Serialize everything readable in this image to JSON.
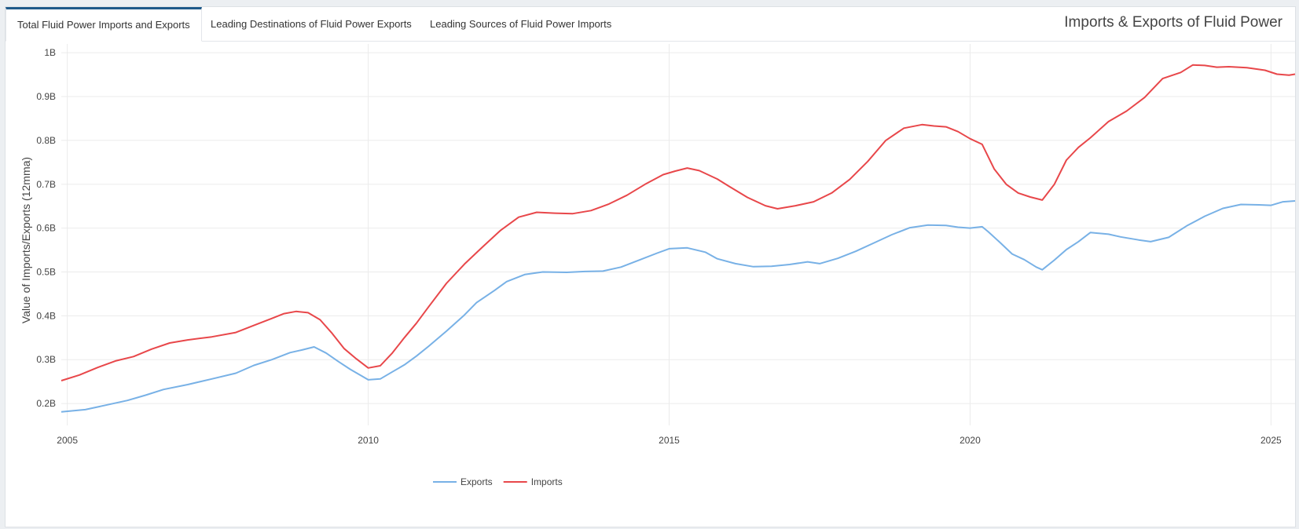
{
  "tabs": [
    {
      "label": "Total Fluid Power Imports and Exports"
    },
    {
      "label": "Leading Destinations of Fluid Power Exports"
    },
    {
      "label": "Leading Sources of Fluid Power Imports"
    }
  ],
  "page_title": "Imports & Exports of Fluid Power",
  "colors": {
    "exports": "#78b1e6",
    "imports": "#e8474a",
    "accent": "#1f5a8a"
  },
  "chart_data": {
    "type": "line",
    "title": "",
    "xlabel": "",
    "ylabel": "Value of Imports/Exports (12mma)",
    "xlim": [
      2004.9,
      2025.4
    ],
    "ylim": [
      0.15,
      1.02
    ],
    "x_ticks": [
      2005,
      2010,
      2015,
      2020,
      2025
    ],
    "x_tick_labels": [
      "2005",
      "2010",
      "2015",
      "2020",
      "2025"
    ],
    "y_ticks": [
      0.2,
      0.3,
      0.4,
      0.5,
      0.6,
      0.7,
      0.8,
      0.9,
      1.0
    ],
    "y_tick_labels": [
      "0.2B",
      "0.3B",
      "0.4B",
      "0.5B",
      "0.6B",
      "0.7B",
      "0.8B",
      "0.9B",
      "1B"
    ],
    "grid": true,
    "legend_position": "bottom-center",
    "series": [
      {
        "name": "Exports",
        "color": "#78b1e6",
        "points": [
          [
            2004.9,
            0.181
          ],
          [
            2005.3,
            0.186
          ],
          [
            2005.7,
            0.198
          ],
          [
            2006.0,
            0.207
          ],
          [
            2006.3,
            0.219
          ],
          [
            2006.6,
            0.232
          ],
          [
            2007.0,
            0.243
          ],
          [
            2007.4,
            0.256
          ],
          [
            2007.8,
            0.269
          ],
          [
            2008.1,
            0.287
          ],
          [
            2008.4,
            0.3
          ],
          [
            2008.7,
            0.316
          ],
          [
            2008.9,
            0.322
          ],
          [
            2009.1,
            0.329
          ],
          [
            2009.3,
            0.315
          ],
          [
            2009.5,
            0.296
          ],
          [
            2009.7,
            0.278
          ],
          [
            2009.9,
            0.262
          ],
          [
            2010.0,
            0.254
          ],
          [
            2010.2,
            0.256
          ],
          [
            2010.4,
            0.272
          ],
          [
            2010.6,
            0.288
          ],
          [
            2010.8,
            0.308
          ],
          [
            2011.0,
            0.33
          ],
          [
            2011.3,
            0.365
          ],
          [
            2011.6,
            0.402
          ],
          [
            2011.8,
            0.43
          ],
          [
            2012.1,
            0.458
          ],
          [
            2012.3,
            0.478
          ],
          [
            2012.6,
            0.494
          ],
          [
            2012.9,
            0.5
          ],
          [
            2013.3,
            0.499
          ],
          [
            2013.6,
            0.501
          ],
          [
            2013.9,
            0.502
          ],
          [
            2014.2,
            0.511
          ],
          [
            2014.5,
            0.527
          ],
          [
            2014.8,
            0.543
          ],
          [
            2015.0,
            0.553
          ],
          [
            2015.3,
            0.555
          ],
          [
            2015.6,
            0.545
          ],
          [
            2015.8,
            0.53
          ],
          [
            2016.1,
            0.519
          ],
          [
            2016.4,
            0.512
          ],
          [
            2016.7,
            0.513
          ],
          [
            2017.0,
            0.517
          ],
          [
            2017.3,
            0.523
          ],
          [
            2017.5,
            0.519
          ],
          [
            2017.8,
            0.531
          ],
          [
            2018.1,
            0.547
          ],
          [
            2018.4,
            0.566
          ],
          [
            2018.7,
            0.585
          ],
          [
            2019.0,
            0.601
          ],
          [
            2019.3,
            0.607
          ],
          [
            2019.6,
            0.606
          ],
          [
            2019.8,
            0.602
          ],
          [
            2020.0,
            0.6
          ],
          [
            2020.2,
            0.603
          ],
          [
            2020.3,
            0.592
          ],
          [
            2020.5,
            0.567
          ],
          [
            2020.7,
            0.541
          ],
          [
            2020.9,
            0.528
          ],
          [
            2021.1,
            0.511
          ],
          [
            2021.2,
            0.505
          ],
          [
            2021.4,
            0.527
          ],
          [
            2021.6,
            0.551
          ],
          [
            2021.8,
            0.569
          ],
          [
            2022.0,
            0.59
          ],
          [
            2022.3,
            0.586
          ],
          [
            2022.5,
            0.58
          ],
          [
            2022.8,
            0.573
          ],
          [
            2023.0,
            0.569
          ],
          [
            2023.3,
            0.579
          ],
          [
            2023.6,
            0.605
          ],
          [
            2023.9,
            0.627
          ],
          [
            2024.2,
            0.645
          ],
          [
            2024.5,
            0.654
          ],
          [
            2024.8,
            0.653
          ],
          [
            2025.0,
            0.652
          ],
          [
            2025.2,
            0.66
          ],
          [
            2025.4,
            0.662
          ]
        ]
      },
      {
        "name": "Imports",
        "color": "#e8474a",
        "points": [
          [
            2004.9,
            0.252
          ],
          [
            2005.2,
            0.265
          ],
          [
            2005.5,
            0.282
          ],
          [
            2005.8,
            0.297
          ],
          [
            2006.1,
            0.307
          ],
          [
            2006.4,
            0.324
          ],
          [
            2006.7,
            0.338
          ],
          [
            2007.0,
            0.345
          ],
          [
            2007.4,
            0.352
          ],
          [
            2007.8,
            0.362
          ],
          [
            2008.1,
            0.378
          ],
          [
            2008.4,
            0.394
          ],
          [
            2008.6,
            0.405
          ],
          [
            2008.8,
            0.41
          ],
          [
            2009.0,
            0.407
          ],
          [
            2009.2,
            0.391
          ],
          [
            2009.4,
            0.36
          ],
          [
            2009.6,
            0.325
          ],
          [
            2009.8,
            0.302
          ],
          [
            2010.0,
            0.281
          ],
          [
            2010.2,
            0.286
          ],
          [
            2010.4,
            0.315
          ],
          [
            2010.6,
            0.35
          ],
          [
            2010.8,
            0.383
          ],
          [
            2011.0,
            0.42
          ],
          [
            2011.3,
            0.474
          ],
          [
            2011.6,
            0.518
          ],
          [
            2011.9,
            0.557
          ],
          [
            2012.2,
            0.595
          ],
          [
            2012.5,
            0.625
          ],
          [
            2012.8,
            0.636
          ],
          [
            2013.1,
            0.634
          ],
          [
            2013.4,
            0.633
          ],
          [
            2013.7,
            0.64
          ],
          [
            2014.0,
            0.655
          ],
          [
            2014.3,
            0.675
          ],
          [
            2014.6,
            0.7
          ],
          [
            2014.9,
            0.722
          ],
          [
            2015.1,
            0.73
          ],
          [
            2015.3,
            0.737
          ],
          [
            2015.5,
            0.731
          ],
          [
            2015.8,
            0.712
          ],
          [
            2016.0,
            0.695
          ],
          [
            2016.3,
            0.67
          ],
          [
            2016.6,
            0.651
          ],
          [
            2016.8,
            0.644
          ],
          [
            2017.1,
            0.651
          ],
          [
            2017.4,
            0.66
          ],
          [
            2017.7,
            0.68
          ],
          [
            2018.0,
            0.711
          ],
          [
            2018.3,
            0.752
          ],
          [
            2018.6,
            0.8
          ],
          [
            2018.9,
            0.828
          ],
          [
            2019.2,
            0.836
          ],
          [
            2019.4,
            0.833
          ],
          [
            2019.6,
            0.831
          ],
          [
            2019.8,
            0.82
          ],
          [
            2020.0,
            0.804
          ],
          [
            2020.2,
            0.791
          ],
          [
            2020.4,
            0.735
          ],
          [
            2020.6,
            0.7
          ],
          [
            2020.8,
            0.68
          ],
          [
            2021.0,
            0.671
          ],
          [
            2021.2,
            0.664
          ],
          [
            2021.4,
            0.7
          ],
          [
            2021.6,
            0.755
          ],
          [
            2021.8,
            0.784
          ],
          [
            2022.0,
            0.806
          ],
          [
            2022.3,
            0.843
          ],
          [
            2022.6,
            0.867
          ],
          [
            2022.9,
            0.898
          ],
          [
            2023.2,
            0.941
          ],
          [
            2023.5,
            0.955
          ],
          [
            2023.7,
            0.972
          ],
          [
            2023.9,
            0.971
          ],
          [
            2024.1,
            0.967
          ],
          [
            2024.3,
            0.968
          ],
          [
            2024.6,
            0.966
          ],
          [
            2024.9,
            0.96
          ],
          [
            2025.1,
            0.951
          ],
          [
            2025.3,
            0.949
          ],
          [
            2025.4,
            0.951
          ]
        ]
      }
    ]
  }
}
